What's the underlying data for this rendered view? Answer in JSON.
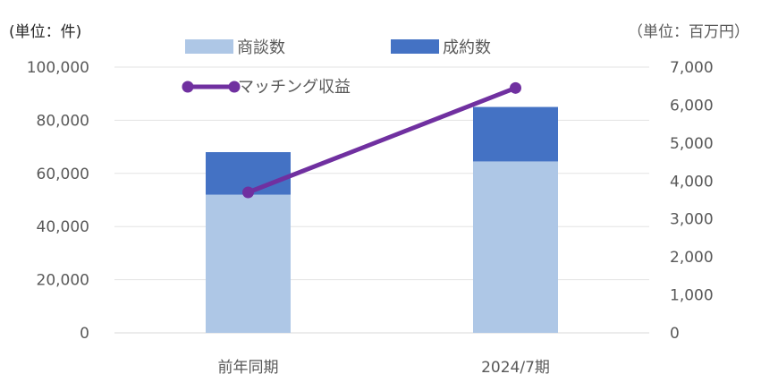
{
  "chart_data": {
    "type": "bar",
    "categories": [
      "前年同期",
      "2024/7期"
    ],
    "series": [
      {
        "name": "商談数",
        "values": [
          52000,
          64500
        ],
        "axis": "left",
        "stack": "a",
        "color": "#aec7e6"
      },
      {
        "name": "成約数",
        "values": [
          16000,
          20500
        ],
        "axis": "left",
        "stack": "a",
        "color": "#4472c4"
      },
      {
        "name": "マッチング収益",
        "values": [
          3700,
          6450
        ],
        "axis": "right",
        "type": "line",
        "color": "#7030a0"
      }
    ],
    "left_axis": {
      "unit_label": "(単位：件)",
      "ylim": [
        0,
        100000
      ],
      "ticks": [
        "0",
        "20,000",
        "40,000",
        "60,000",
        "80,000",
        "100,000"
      ]
    },
    "right_axis": {
      "unit_label": "（単位：百万円）",
      "ylim": [
        0,
        7000
      ],
      "ticks": [
        "0",
        "1,000",
        "2,000",
        "3,000",
        "4,000",
        "5,000",
        "6,000",
        "7,000"
      ]
    },
    "grid": true,
    "legend": "top"
  }
}
